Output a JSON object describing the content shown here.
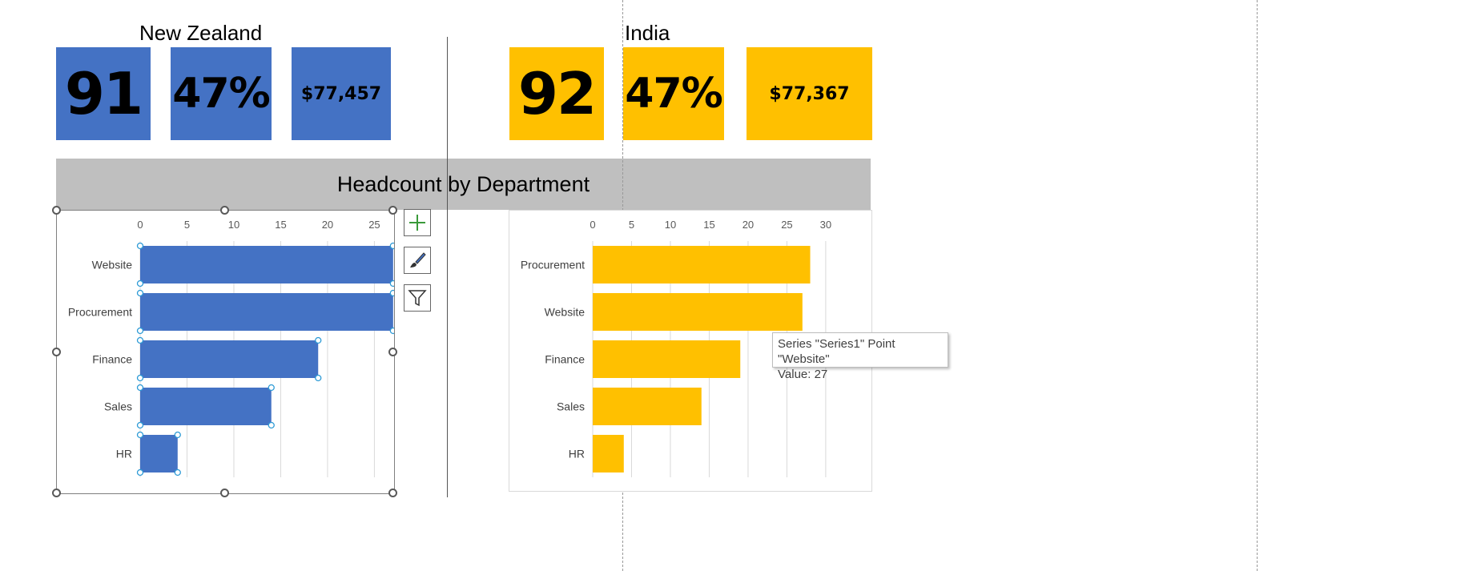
{
  "colors": {
    "nz": "#4472c4",
    "india": "#ffc000",
    "banner": "#bfbfbf",
    "gridline": "#d9d9d9"
  },
  "left": {
    "title": "New Zealand",
    "kpi1": "91",
    "kpi2": "47%",
    "kpi3": "$77,457"
  },
  "right": {
    "title": "India",
    "kpi1": "92",
    "kpi2": "47%",
    "kpi3": "$77,367"
  },
  "banner": {
    "title": "Headcount by Department"
  },
  "tooltip": {
    "line1": "Series \"Series1\" Point \"Website\"",
    "line2": "Value: 27"
  },
  "chart_buttons": [
    "plus-icon",
    "brush-icon",
    "filter-icon"
  ],
  "chart_data": [
    {
      "type": "bar",
      "orientation": "horizontal",
      "color": "#4472c4",
      "categories": [
        "Website",
        "Procurement",
        "Finance",
        "Sales",
        "HR"
      ],
      "series": [
        {
          "values": [
            27,
            27,
            19,
            14,
            4
          ]
        }
      ],
      "xlim": [
        0,
        33
      ],
      "ticks": [
        0,
        5,
        10,
        15,
        20,
        25,
        30
      ],
      "grid": true,
      "selected": true
    },
    {
      "type": "bar",
      "orientation": "horizontal",
      "color": "#ffc000",
      "categories": [
        "Procurement",
        "Website",
        "Finance",
        "Sales",
        "HR"
      ],
      "series": [
        {
          "values": [
            28,
            27,
            19,
            14,
            4
          ]
        }
      ],
      "xlim": [
        0,
        33
      ],
      "ticks": [
        0,
        5,
        10,
        15,
        20,
        25,
        30
      ],
      "grid": true,
      "selected": false
    }
  ]
}
